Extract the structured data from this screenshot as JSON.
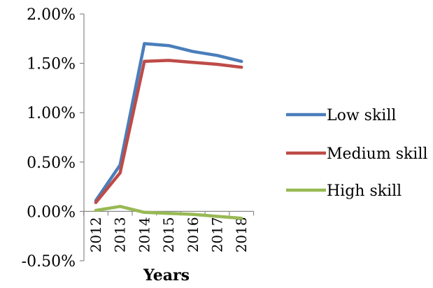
{
  "chart_data": {
    "type": "line",
    "title": "",
    "xlabel": "Years",
    "ylabel": "",
    "x": [
      "2012",
      "2013",
      "2014",
      "2015",
      "2016",
      "2017",
      "2018"
    ],
    "ylim": [
      -0.005,
      0.02
    ],
    "y_ticks": [
      "-0.50%",
      "0.00%",
      "0.50%",
      "1.00%",
      "1.50%",
      "2.00%"
    ],
    "y_tick_values": [
      -0.005,
      0.0,
      0.005,
      0.01,
      0.015,
      0.02
    ],
    "grid": false,
    "legend_position": "right",
    "series": [
      {
        "name": "Low skill",
        "color": "#4a7ebb",
        "values": [
          0.0011,
          0.0047,
          0.017,
          0.0168,
          0.0162,
          0.0158,
          0.0152
        ]
      },
      {
        "name": "Medium skill",
        "color": "#be4b48",
        "values": [
          0.0009,
          0.0039,
          0.0152,
          0.0153,
          0.0151,
          0.0149,
          0.0146
        ]
      },
      {
        "name": "High skill",
        "color": "#98b954",
        "values": [
          0.0001,
          0.0005,
          -0.0001,
          -0.0002,
          -0.0003,
          -0.0005,
          -0.0007
        ]
      }
    ]
  }
}
